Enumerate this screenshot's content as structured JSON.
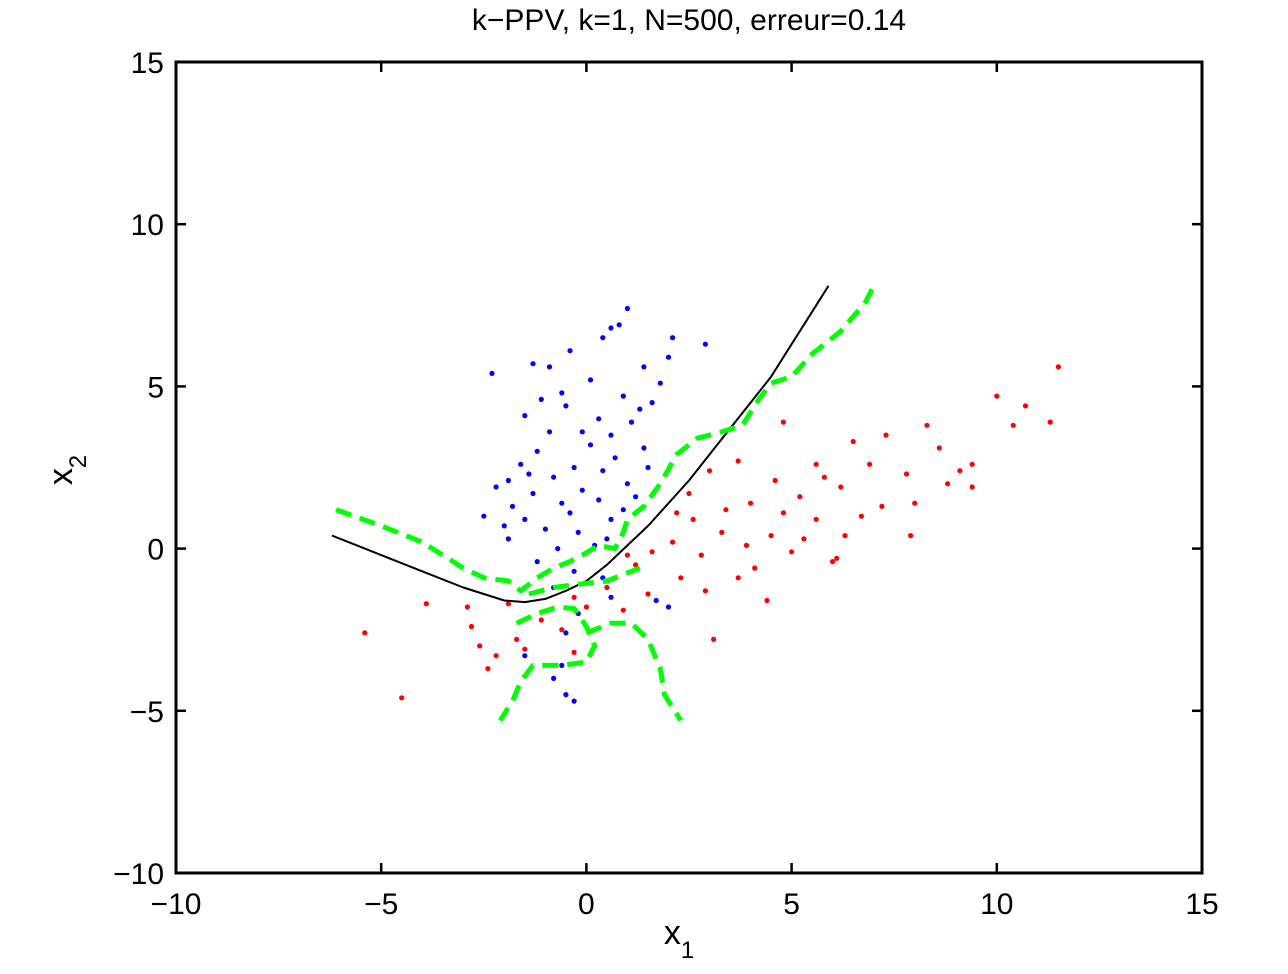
{
  "chart_data": {
    "type": "scatter",
    "title": "k−PPV, k=1, N=500, erreur=0.14",
    "xlabel": "x",
    "xlabel_subscript": "1",
    "ylabel": "x",
    "ylabel_subscript": "2",
    "xlim": [
      -10,
      15
    ],
    "ylim": [
      -10,
      15
    ],
    "xticks": [
      -10,
      -5,
      0,
      5,
      10,
      15
    ],
    "yticks": [
      -10,
      -5,
      0,
      5,
      10,
      15
    ],
    "xtick_labels": [
      "−10",
      "−5",
      "0",
      "5",
      "10",
      "15"
    ],
    "ytick_labels": [
      "−10",
      "−5",
      "0",
      "5",
      "10",
      "15"
    ],
    "grid": false,
    "colors": {
      "class_blue": "#0000ff",
      "class_red": "#ff0000",
      "bayes_boundary": "#000000",
      "knn_boundary": "#00ff00",
      "axes": "#000000"
    },
    "series": [
      {
        "name": "Class 1 (blue)",
        "kind": "points",
        "color": "#0000ff",
        "points": [
          [
            -2.3,
            5.4
          ],
          [
            -1.3,
            5.7
          ],
          [
            -0.9,
            5.6
          ],
          [
            -0.4,
            6.1
          ],
          [
            0.4,
            6.5
          ],
          [
            0.6,
            6.8
          ],
          [
            1.0,
            7.4
          ],
          [
            0.8,
            6.9
          ],
          [
            2.1,
            6.5
          ],
          [
            2.9,
            6.3
          ],
          [
            2.0,
            5.9
          ],
          [
            1.4,
            5.6
          ],
          [
            1.8,
            5.1
          ],
          [
            0.1,
            5.2
          ],
          [
            -0.6,
            4.8
          ],
          [
            0.9,
            4.7
          ],
          [
            -1.5,
            4.1
          ],
          [
            -0.5,
            4.4
          ],
          [
            0.3,
            4.0
          ],
          [
            1.1,
            3.9
          ],
          [
            -0.9,
            3.6
          ],
          [
            0.6,
            3.5
          ],
          [
            -1.2,
            3.0
          ],
          [
            0.1,
            3.2
          ],
          [
            1.4,
            3.1
          ],
          [
            -1.6,
            2.6
          ],
          [
            -0.3,
            2.5
          ],
          [
            0.7,
            2.8
          ],
          [
            -1.9,
            2.1
          ],
          [
            -0.8,
            2.2
          ],
          [
            0.4,
            2.4
          ],
          [
            1.5,
            2.5
          ],
          [
            -2.2,
            1.9
          ],
          [
            -1.3,
            1.7
          ],
          [
            -0.1,
            1.8
          ],
          [
            1.0,
            2.0
          ],
          [
            -1.8,
            1.3
          ],
          [
            -0.6,
            1.4
          ],
          [
            0.3,
            1.5
          ],
          [
            1.2,
            1.6
          ],
          [
            -2.5,
            1.0
          ],
          [
            -1.5,
            0.9
          ],
          [
            -0.4,
            1.1
          ],
          [
            0.6,
            0.9
          ],
          [
            -1.0,
            0.6
          ],
          [
            -0.2,
            0.5
          ],
          [
            0.5,
            0.3
          ],
          [
            -1.9,
            0.3
          ],
          [
            -0.7,
            0.0
          ],
          [
            0.2,
            0.1
          ],
          [
            -1.2,
            -0.4
          ],
          [
            -0.3,
            -0.7
          ],
          [
            0.4,
            -0.9
          ],
          [
            -0.8,
            -1.2
          ],
          [
            0.6,
            -1.5
          ],
          [
            -0.2,
            -2.0
          ],
          [
            -0.5,
            -2.6
          ],
          [
            0.2,
            -3.0
          ],
          [
            -1.5,
            -3.3
          ],
          [
            -0.6,
            -3.6
          ],
          [
            -0.8,
            -4.0
          ],
          [
            -0.5,
            -4.5
          ],
          [
            -0.3,
            -4.7
          ],
          [
            1.7,
            -1.6
          ],
          [
            2.0,
            -1.8
          ],
          [
            1.3,
            4.3
          ],
          [
            1.6,
            4.5
          ],
          [
            -0.1,
            3.6
          ],
          [
            -1.4,
            2.3
          ],
          [
            0.9,
            1.2
          ],
          [
            -2.0,
            0.7
          ],
          [
            -1.1,
            4.6
          ]
        ]
      },
      {
        "name": "Class 2 (red)",
        "kind": "points",
        "color": "#ff0000",
        "points": [
          [
            11.5,
            5.6
          ],
          [
            10.7,
            4.4
          ],
          [
            10.0,
            4.7
          ],
          [
            11.3,
            3.9
          ],
          [
            10.4,
            3.8
          ],
          [
            9.4,
            2.6
          ],
          [
            9.4,
            1.9
          ],
          [
            8.3,
            3.8
          ],
          [
            7.3,
            3.5
          ],
          [
            8.6,
            3.1
          ],
          [
            6.5,
            3.3
          ],
          [
            6.9,
            2.6
          ],
          [
            5.6,
            2.6
          ],
          [
            7.8,
            2.3
          ],
          [
            8.8,
            2.0
          ],
          [
            6.2,
            1.9
          ],
          [
            5.2,
            1.6
          ],
          [
            7.2,
            1.3
          ],
          [
            4.8,
            1.1
          ],
          [
            5.6,
            0.9
          ],
          [
            6.3,
            0.4
          ],
          [
            4.5,
            0.4
          ],
          [
            3.9,
            0.1
          ],
          [
            5.0,
            -0.1
          ],
          [
            6.0,
            -0.4
          ],
          [
            4.1,
            -0.6
          ],
          [
            3.3,
            0.5
          ],
          [
            2.6,
            0.9
          ],
          [
            3.4,
            1.2
          ],
          [
            2.1,
            0.2
          ],
          [
            2.8,
            -0.2
          ],
          [
            1.6,
            -0.1
          ],
          [
            3.7,
            -0.9
          ],
          [
            2.3,
            -0.9
          ],
          [
            1.2,
            -0.5
          ],
          [
            2.9,
            -1.3
          ],
          [
            1.5,
            -1.4
          ],
          [
            0.5,
            -1.2
          ],
          [
            -0.3,
            -1.5
          ],
          [
            0.9,
            -1.9
          ],
          [
            -1.1,
            -2.2
          ],
          [
            -0.6,
            -2.5
          ],
          [
            -1.7,
            -2.8
          ],
          [
            -2.8,
            -2.4
          ],
          [
            -2.2,
            -3.3
          ],
          [
            -2.4,
            -3.7
          ],
          [
            -1.5,
            -3.1
          ],
          [
            -0.3,
            -3.2
          ],
          [
            -3.9,
            -1.7
          ],
          [
            -2.9,
            -1.8
          ],
          [
            -5.4,
            -2.6
          ],
          [
            -4.5,
            -4.6
          ],
          [
            3.1,
            -2.8
          ],
          [
            4.4,
            -1.6
          ],
          [
            4.8,
            3.9
          ],
          [
            3.0,
            2.4
          ],
          [
            4.0,
            1.4
          ],
          [
            2.2,
            1.1
          ],
          [
            7.9,
            0.4
          ],
          [
            6.7,
            1.0
          ],
          [
            5.3,
            0.3
          ],
          [
            4.6,
            2.1
          ],
          [
            3.7,
            2.7
          ],
          [
            2.5,
            1.7
          ],
          [
            1.0,
            -0.2
          ],
          [
            0.0,
            -1.8
          ],
          [
            -1.9,
            -1.7
          ],
          [
            -2.6,
            -3.0
          ],
          [
            8.0,
            1.4
          ],
          [
            9.1,
            2.4
          ],
          [
            6.1,
            -0.3
          ],
          [
            5.8,
            2.2
          ]
        ]
      },
      {
        "name": "Bayes decision boundary",
        "kind": "line",
        "style": "solid",
        "color": "#000000",
        "points": [
          [
            -6.2,
            0.4
          ],
          [
            -5.0,
            -0.2
          ],
          [
            -4.0,
            -0.7
          ],
          [
            -3.0,
            -1.2
          ],
          [
            -2.0,
            -1.6
          ],
          [
            -1.5,
            -1.65
          ],
          [
            -1.0,
            -1.55
          ],
          [
            -0.5,
            -1.3
          ],
          [
            0.0,
            -1.0
          ],
          [
            0.5,
            -0.5
          ],
          [
            1.0,
            0.1
          ],
          [
            1.5,
            0.7
          ],
          [
            2.0,
            1.4
          ],
          [
            2.5,
            2.1
          ],
          [
            3.0,
            2.9
          ],
          [
            3.5,
            3.7
          ],
          [
            4.0,
            4.5
          ],
          [
            4.5,
            5.3
          ],
          [
            5.0,
            6.3
          ],
          [
            5.5,
            7.3
          ],
          [
            5.9,
            8.1
          ]
        ]
      },
      {
        "name": "k-NN boundary (upper)",
        "kind": "line",
        "style": "dashed",
        "color": "#00ff00",
        "points": [
          [
            -6.1,
            1.2
          ],
          [
            -5.0,
            0.7
          ],
          [
            -4.0,
            0.2
          ],
          [
            -3.0,
            -0.6
          ],
          [
            -2.5,
            -0.9
          ],
          [
            -1.9,
            -1.0
          ],
          [
            -1.6,
            -1.3
          ],
          [
            -1.2,
            -0.9
          ],
          [
            -0.8,
            -0.6
          ],
          [
            -0.4,
            -0.4
          ],
          [
            -0.1,
            -0.2
          ],
          [
            0.3,
            0.1
          ],
          [
            0.7,
            0.0
          ],
          [
            0.9,
            0.5
          ],
          [
            1.0,
            0.9
          ],
          [
            1.4,
            1.3
          ],
          [
            1.8,
            2.0
          ],
          [
            2.2,
            2.9
          ],
          [
            2.7,
            3.4
          ],
          [
            3.3,
            3.6
          ],
          [
            3.8,
            3.8
          ],
          [
            4.2,
            4.6
          ],
          [
            4.5,
            5.1
          ],
          [
            5.0,
            5.3
          ],
          [
            5.5,
            6.0
          ],
          [
            6.2,
            6.7
          ],
          [
            6.8,
            7.6
          ],
          [
            7.0,
            8.1
          ]
        ]
      },
      {
        "name": "k-NN boundary (island)",
        "kind": "line",
        "style": "dashed",
        "color": "#00ff00",
        "points": [
          [
            -1.7,
            -2.3
          ],
          [
            -1.2,
            -2.0
          ],
          [
            -0.7,
            -1.8
          ],
          [
            -0.3,
            -1.85
          ],
          [
            0.0,
            -2.4
          ],
          [
            0.2,
            -3.0
          ],
          [
            0.0,
            -3.5
          ],
          [
            -0.6,
            -3.6
          ],
          [
            -1.3,
            -3.6
          ],
          [
            -1.6,
            -4.1
          ],
          [
            -1.8,
            -4.7
          ],
          [
            -2.1,
            -5.3
          ]
        ]
      },
      {
        "name": "k-NN boundary (lower)",
        "kind": "line",
        "style": "dashed",
        "color": "#00ff00",
        "points": [
          [
            0.0,
            -2.6
          ],
          [
            0.6,
            -2.3
          ],
          [
            1.1,
            -2.3
          ],
          [
            1.5,
            -2.8
          ],
          [
            1.8,
            -3.7
          ],
          [
            1.9,
            -4.5
          ],
          [
            2.3,
            -5.3
          ]
        ]
      },
      {
        "name": "k-NN boundary (inner)",
        "kind": "line",
        "style": "dashed",
        "color": "#00ff00",
        "points": [
          [
            -1.4,
            -1.4
          ],
          [
            -0.8,
            -1.2
          ],
          [
            -0.2,
            -1.1
          ],
          [
            0.5,
            -1.0
          ],
          [
            0.9,
            -0.8
          ],
          [
            1.3,
            -0.6
          ]
        ]
      }
    ]
  }
}
